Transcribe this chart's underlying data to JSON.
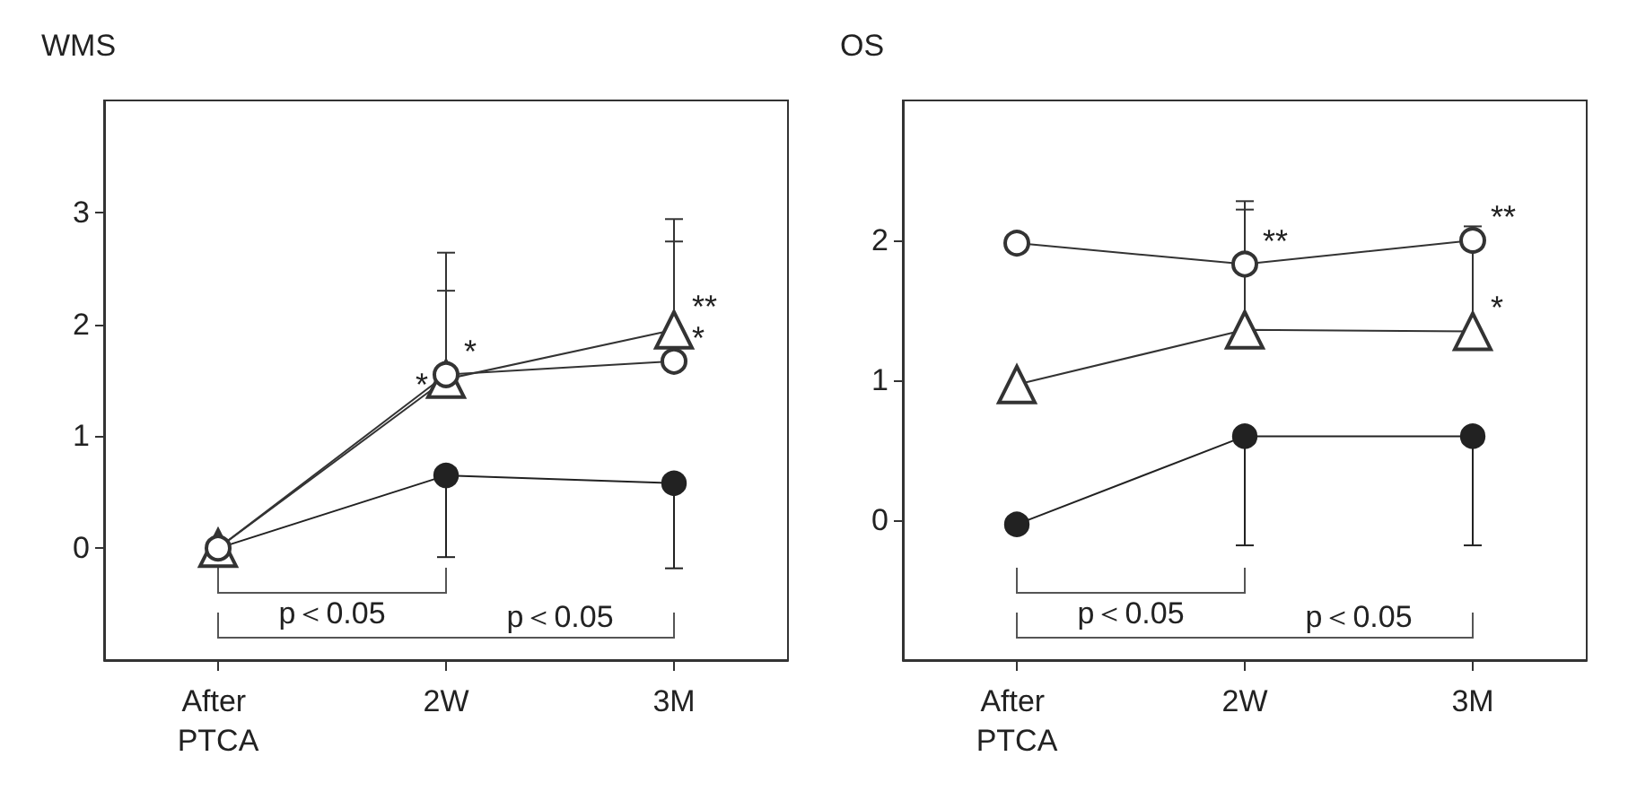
{
  "chart_data": [
    {
      "type": "line",
      "title": "WMS",
      "categories": [
        "After PTCA",
        "2W",
        "3M"
      ],
      "ylim": [
        -1,
        4
      ],
      "yticks": [
        0,
        1,
        2,
        3
      ],
      "grid": false,
      "series": [
        {
          "color": "#222222",
          "marker": "circle",
          "values": [
            0,
            0.65,
            0.58
          ],
          "errors": [
            null,
            [
              -0.08,
              0.65
            ],
            [
              -0.18,
              0.58
            ]
          ]
        },
        {
          "color": "#333333",
          "marker": "triangle",
          "values": [
            0,
            1.51,
            1.95
          ],
          "errors": [
            null,
            [
              1.51,
              2.3
            ],
            [
              1.95,
              2.94
            ]
          ]
        },
        {
          "color": "#333333",
          "marker": "circle",
          "values": [
            0,
            1.55,
            1.67
          ],
          "errors": [
            null,
            [
              1.55,
              2.64
            ],
            [
              1.67,
              2.74
            ]
          ]
        }
      ],
      "annotations": [
        "p＜0.05",
        "p＜0.05",
        {
          "text": "*",
          "x": "2W",
          "y": 1.51
        },
        {
          "text": "*",
          "x": "2W",
          "y": 1.55
        },
        {
          "text": "**",
          "x": "3M",
          "y": 1.95
        },
        {
          "text": "*",
          "x": "3M",
          "y": 1.67
        }
      ]
    },
    {
      "type": "line",
      "title": "OS",
      "categories": [
        "After PTCA",
        "2W",
        "3M"
      ],
      "ylim": [
        -1,
        3
      ],
      "yticks": [
        0,
        1,
        2
      ],
      "grid": false,
      "series": [
        {
          "color": "#222222",
          "marker": "circle",
          "values": [
            -0.03,
            0.6,
            0.6
          ],
          "errors": [
            null,
            [
              -0.18,
              0.6
            ],
            [
              -0.18,
              0.6
            ]
          ]
        },
        {
          "color": "#333333",
          "marker": "triangle",
          "values": [
            0.97,
            1.36,
            1.35
          ],
          "errors": [
            null,
            [
              1.36,
              2.22
            ],
            [
              1.35,
              2.1
            ]
          ]
        },
        {
          "color": "#333333",
          "marker": "circle",
          "values": [
            1.98,
            1.83,
            2.0
          ],
          "errors": [
            null,
            [
              1.83,
              2.28
            ],
            null
          ]
        }
      ],
      "annotations": [
        "p＜0.05",
        "p＜0.05",
        {
          "text": "**",
          "x": "2W",
          "y": 1.83
        },
        {
          "text": "**",
          "x": "3M",
          "y": 2.0
        },
        {
          "text": "*",
          "x": "3M",
          "y": 1.35
        }
      ]
    }
  ]
}
